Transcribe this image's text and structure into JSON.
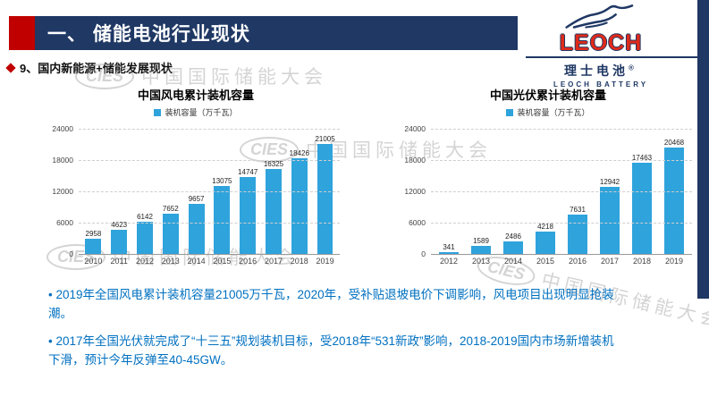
{
  "header": {
    "section_title": "一、 储能电池行业现状",
    "subtitle": "9、国内新能源+储能发展现状"
  },
  "logo": {
    "name": "LEOCH",
    "cn": "理士电池",
    "reg": "®",
    "sub": "LEOCH BATTERY"
  },
  "watermark": {
    "brand": "CIES",
    "text": "中国国际储能大会"
  },
  "colors": {
    "header_navy": "#1F3864",
    "accent_red": "#C00000",
    "bar_blue": "#2FA3DC",
    "note_blue": "#0070C0"
  },
  "chart_data": [
    {
      "type": "bar",
      "title": "中国风电累计装机容量",
      "legend": "装机容量（万千瓦）",
      "categories": [
        "2010",
        "2011",
        "2012",
        "2013",
        "2014",
        "2015",
        "2016",
        "2017",
        "2018",
        "2019"
      ],
      "values": [
        2958,
        4623,
        6142,
        7652,
        9657,
        13075,
        14747,
        16325,
        18426,
        21005
      ],
      "xlabel": "",
      "ylabel": "",
      "ylim": [
        0,
        24000
      ],
      "yticks": [
        0,
        6000,
        12000,
        18000,
        24000
      ],
      "grid": "dashed-horizontal",
      "legend_position": "top",
      "bar_color": "#2FA3DC"
    },
    {
      "type": "bar",
      "title": "中国光伏累计装机容量",
      "legend": "装机容量（万千瓦）",
      "categories": [
        "2012",
        "2013",
        "2014",
        "2015",
        "2016",
        "2017",
        "2018",
        "2019"
      ],
      "values": [
        341,
        1589,
        2486,
        4218,
        7631,
        12942,
        17463,
        20468
      ],
      "xlabel": "",
      "ylabel": "",
      "ylim": [
        0,
        24000
      ],
      "yticks": [
        0,
        6000,
        12000,
        18000,
        24000
      ],
      "grid": "dashed-horizontal",
      "legend_position": "top",
      "bar_color": "#2FA3DC"
    }
  ],
  "notes": [
    "• 2019年全国风电累计装机容量21005万千瓦，2020年，受补贴退坡电价下调影响，风电项目出现明显抢装潮。",
    "• 2017年全国光伏就完成了“十三五”规划装机目标，受2018年“531新政”影响，2018-2019国内市场新增装机下滑，预计今年反弹至40-45GW。"
  ]
}
